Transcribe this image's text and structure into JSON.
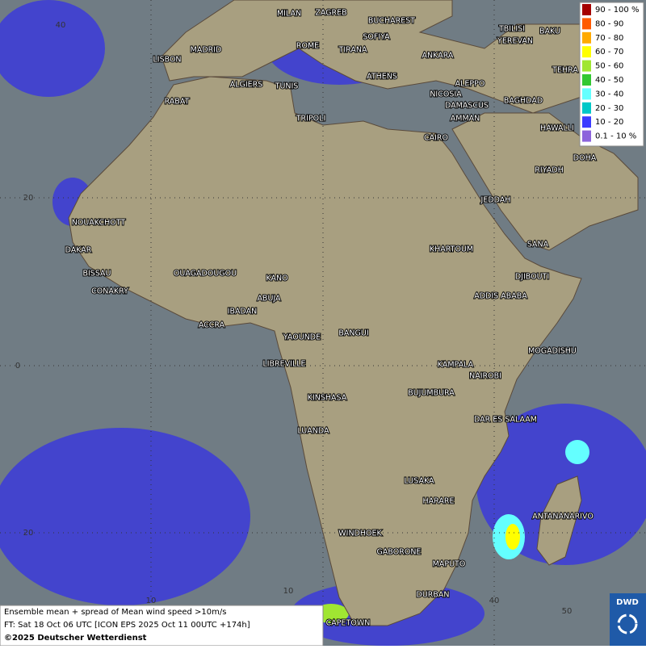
{
  "map": {
    "cities": [
      "MILAN",
      "ZAGREB",
      "BUCHAREST",
      "SOFIYA",
      "TBILISI",
      "YEREVAN",
      "BAKU",
      "MADRID",
      "ROME",
      "TIRANA",
      "ANKARA",
      "LISBON",
      "TEHRA",
      "ALGIERS",
      "TUNIS",
      "ATHENS",
      "ALEPPO",
      "RABAT",
      "NICOSIA",
      "BAGHDAD",
      "DAMASCUS",
      "TRIPOLI",
      "AMMAN",
      "CAIRO",
      "HAWALLI",
      "DOHA",
      "RIYADH",
      "JEDDAH",
      "NOUAKCHOTT",
      "SANA",
      "DAKAR",
      "KHARTOUM",
      "BISSAU",
      "DJIBOUTI",
      "OUAGADOUGOU",
      "KANO",
      "CONAKRY",
      "ADDIS ABABA",
      "ABUJA",
      "IBADAN",
      "ACCRA",
      "YAOUNDE",
      "BANGUI",
      "MOGADISHU",
      "LIBREVILLE",
      "KAMPALA",
      "NAIROBI",
      "BUJUMBURA",
      "KINSHASA",
      "DAR ES SALAAM",
      "LUANDA",
      "LUSAKA",
      "HARARE",
      "ANTANANARIVO",
      "WINDHOEK",
      "GABORONE",
      "MAPUTO",
      "DURBAN",
      "CAPETOWN"
    ],
    "grid_labels": [
      "40",
      "20",
      "0",
      "20",
      "10",
      "10",
      "40",
      "50"
    ],
    "legend": [
      {
        "label": "90 - 100 %",
        "color": "#a50000"
      },
      {
        "label": "80 - 90",
        "color": "#ff5a00"
      },
      {
        "label": "70 - 80",
        "color": "#ffaa00"
      },
      {
        "label": "60 - 70",
        "color": "#ffff00"
      },
      {
        "label": "50 - 60",
        "color": "#a0e632"
      },
      {
        "label": "40 - 50",
        "color": "#32c832"
      },
      {
        "label": "30 - 40",
        "color": "#64ffff"
      },
      {
        "label": "20 - 30",
        "color": "#00c8c8"
      },
      {
        "label": "10 - 20",
        "color": "#3c3cff"
      },
      {
        "label": "0.1 - 10 %",
        "color": "#8c64dc"
      }
    ],
    "caption": [
      "Ensemble mean + spread of Mean wind speed >10m/s",
      "FT: Sat 18 Oct 06 UTC [ICON EPS 2025 Oct 11 00UTC +174h]",
      "©2025 Deutscher Wetterdienst"
    ],
    "logo": "DWD"
  }
}
